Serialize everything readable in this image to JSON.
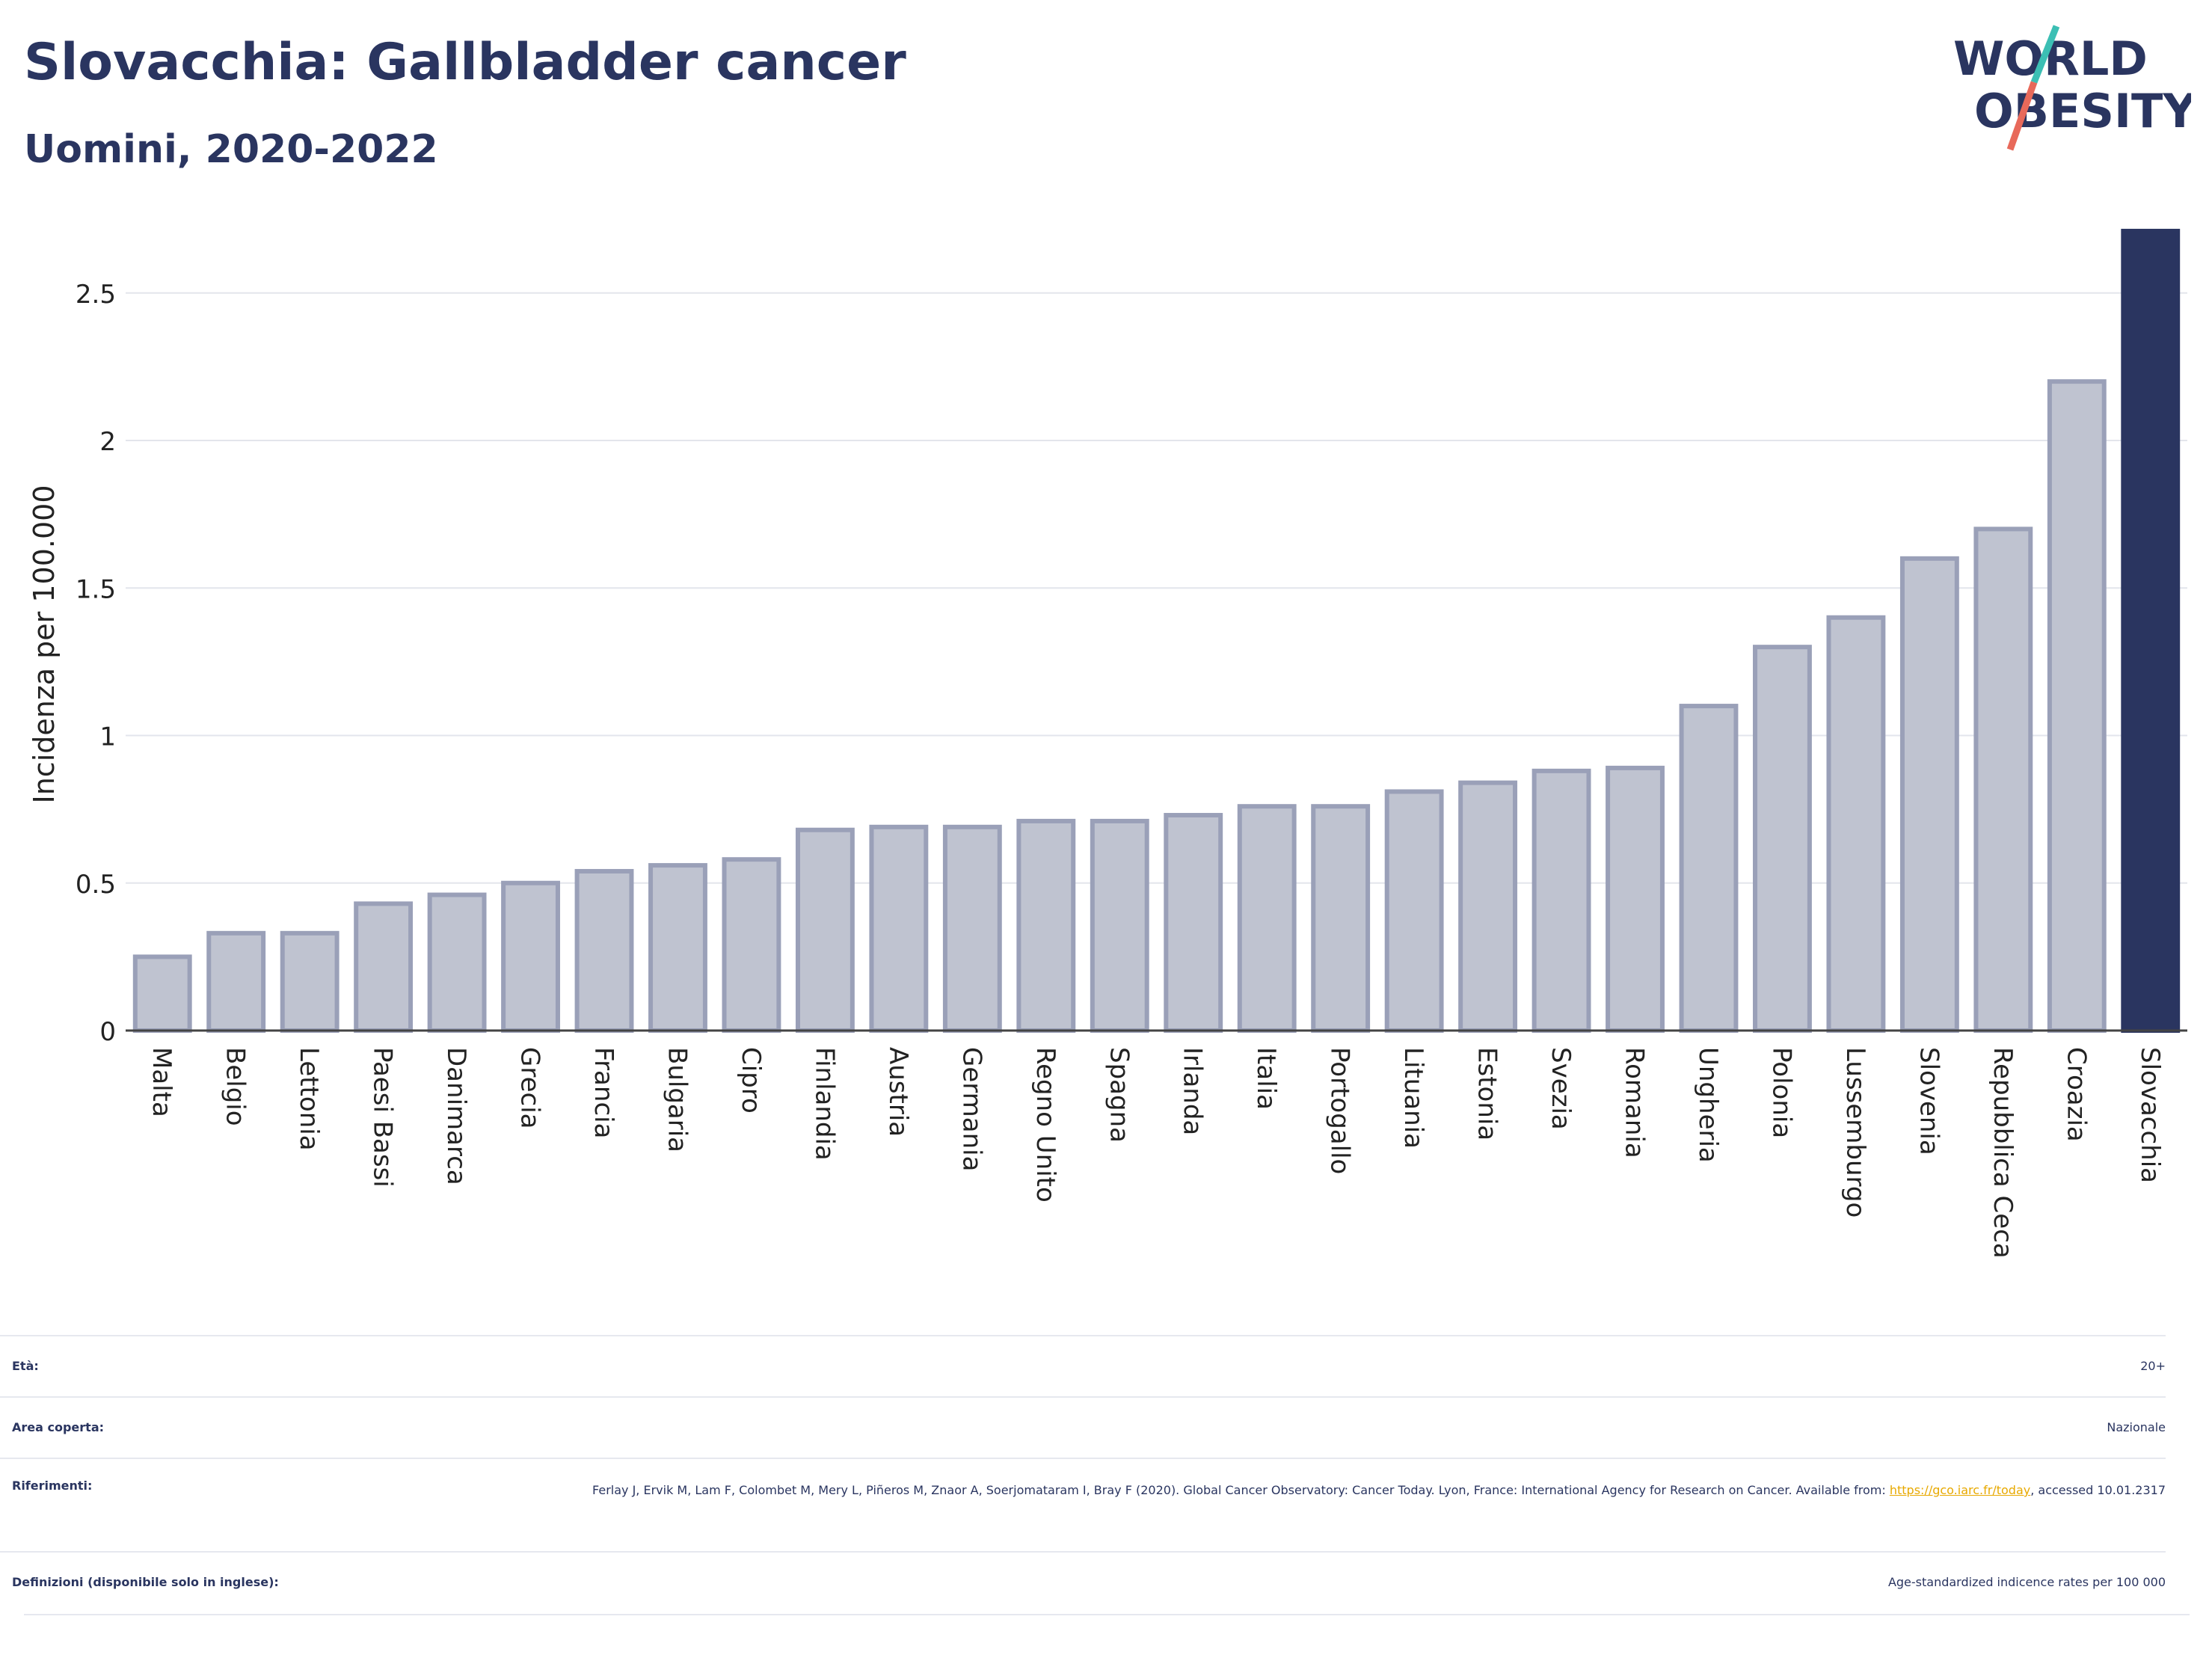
{
  "header": {
    "title": "Slovacchia: Gallbladder cancer",
    "subtitle": "Uomini, 2020-2022",
    "logo_line1": "WORLD",
    "logo_line2": "OBESITY"
  },
  "colors": {
    "navy": "#2a3560",
    "bar_fill": "#bfc3d0",
    "bar_stroke": "#9aa0b8",
    "highlight": "#2a3560",
    "logo_teal": "#3cbfb4",
    "logo_red": "#e8695a",
    "link": "#e8a900"
  },
  "chart_data": {
    "type": "bar",
    "ylabel": "Incidenza per 100.000",
    "ylim": [
      0,
      2.72
    ],
    "yticks": [
      0,
      0.5,
      1,
      1.5,
      2,
      2.5
    ],
    "ytick_labels": [
      "0",
      "0.5",
      "1",
      "1.5",
      "2",
      "2.5"
    ],
    "grid": true,
    "highlight": "Slovacchia",
    "categories": [
      "Malta",
      "Belgio",
      "Lettonia",
      "Paesi Bassi",
      "Danimarca",
      "Grecia",
      "Francia",
      "Bulgaria",
      "Cipro",
      "Finlandia",
      "Austria",
      "Germania",
      "Regno Unito",
      "Spagna",
      "Irlanda",
      "Italia",
      "Portogallo",
      "Lituania",
      "Estonia",
      "Svezia",
      "Romania",
      "Ungheria",
      "Polonia",
      "Lussemburgo",
      "Slovenia",
      "Repubblica Ceca",
      "Croazia",
      "Slovacchia"
    ],
    "values": [
      0.25,
      0.33,
      0.33,
      0.43,
      0.46,
      0.5,
      0.54,
      0.56,
      0.58,
      0.68,
      0.69,
      0.69,
      0.71,
      0.71,
      0.73,
      0.76,
      0.76,
      0.81,
      0.84,
      0.88,
      0.89,
      1.1,
      1.3,
      1.4,
      1.6,
      1.7,
      2.2,
      2.71
    ]
  },
  "meta": {
    "age_label": "Età:",
    "age_value": "20+",
    "area_label": "Area coperta:",
    "area_value": "Nazionale",
    "refs_label": "Riferimenti:",
    "refs_text_1": "Ferlay J, Ervik M, Lam F, Colombet M, Mery L, Piñeros M, Znaor A, Soerjomataram I, Bray F (2020). Global Cancer Observatory: Cancer Today. Lyon, France: International Agency for Research on Cancer. Available from: ",
    "refs_link": "https://gco.iarc.fr/today",
    "refs_text_2": ", accessed 10.01.2317",
    "defs_label": "Definizioni (disponibile solo in inglese):",
    "defs_value": "Age-standardized indicence rates per 100 000"
  }
}
